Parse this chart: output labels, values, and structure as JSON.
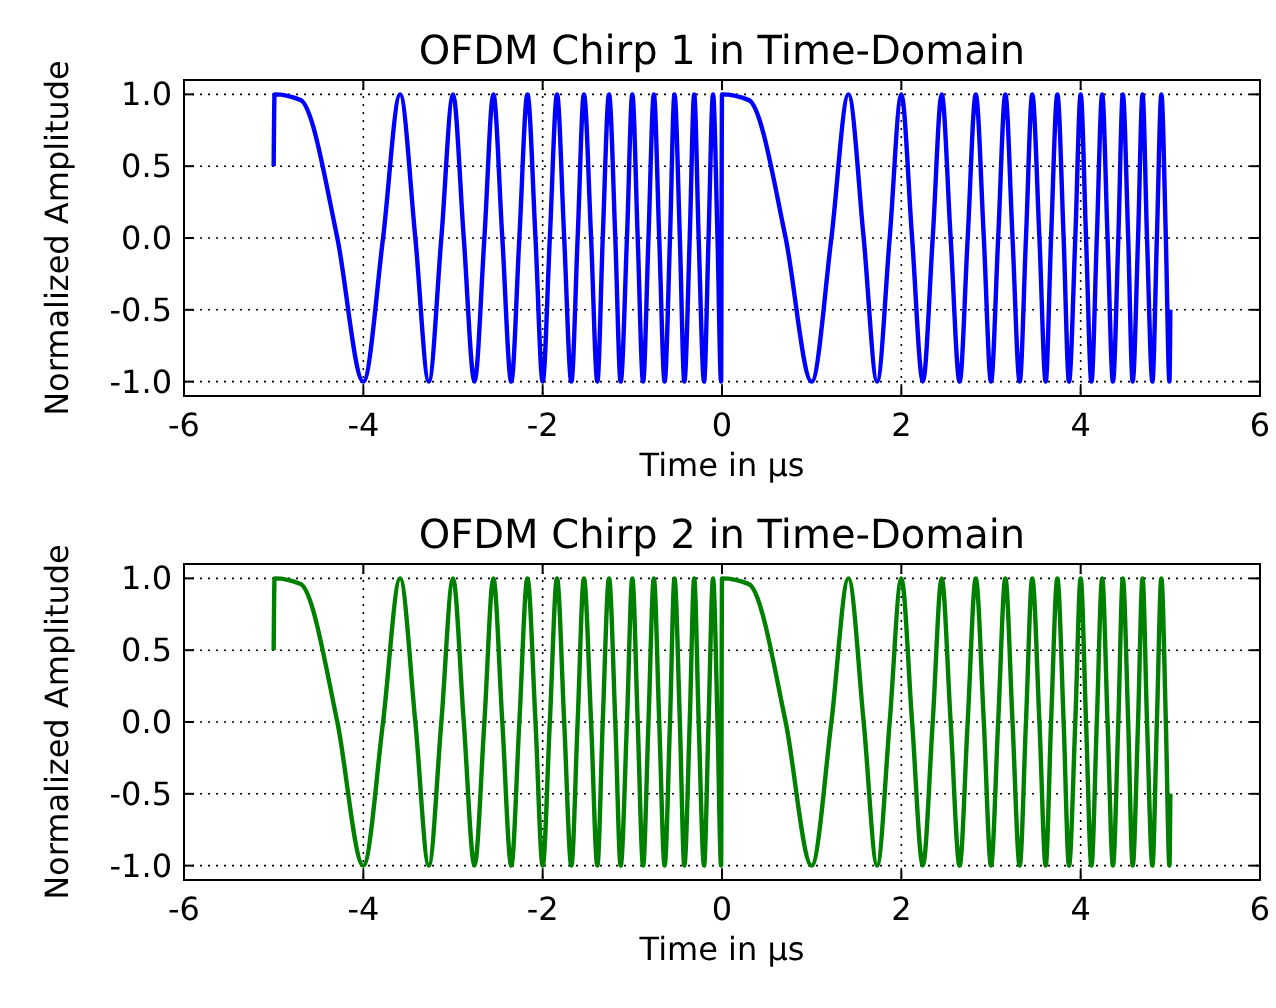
{
  "chart_data": [
    {
      "type": "line",
      "title": "OFDM Chirp 1 in Time-Domain",
      "xlabel": "Time in μs",
      "ylabel": "Normalized Amplitude",
      "xlim": [
        -6,
        6
      ],
      "xticks": [
        -6,
        -4,
        -2,
        0,
        2,
        4,
        6
      ],
      "ylim": [
        -1.1,
        1.1
      ],
      "yticks": [
        {
          "value": -1,
          "label": "-1.0"
        },
        {
          "value": -0.5,
          "label": "-0.5"
        },
        {
          "value": 0,
          "label": "0.0"
        },
        {
          "value": 0.5,
          "label": "0.5"
        },
        {
          "value": 1,
          "label": "1.0"
        }
      ],
      "grid": true,
      "marker": "none",
      "line_style": "solid",
      "series": [
        {
          "color": "#0000ff",
          "x": [
            -5,
            -4.99,
            -4.7,
            -4.29,
            -4,
            -3.78,
            -3.59,
            -3.42,
            -3.27,
            -3.13,
            -3,
            -2.88,
            -2.76,
            -2.65,
            -2.55,
            -2.45,
            -2.35,
            -2.26,
            -2.17,
            -2.08,
            -2,
            -1.92,
            -1.84,
            -1.76,
            -1.68,
            -1.61,
            -1.54,
            -1.46,
            -1.39,
            -1.33,
            -1.26,
            -1.19,
            -1.13,
            -1.06,
            -1,
            -0.94,
            -0.88,
            -0.82,
            -0.76,
            -0.7,
            -0.64,
            -0.58,
            -0.53,
            -0.47,
            -0.42,
            -0.36,
            -0.31,
            -0.26,
            -0.2,
            -0.15,
            -0.1,
            -0.05,
            -0.01,
            0,
            0.3,
            0.71,
            1,
            1.22,
            1.41,
            1.58,
            1.73,
            1.87,
            2,
            2.12,
            2.24,
            2.35,
            2.45,
            2.55,
            2.65,
            2.74,
            2.83,
            2.92,
            3,
            3.08,
            3.16,
            3.24,
            3.32,
            3.39,
            3.46,
            3.54,
            3.61,
            3.67,
            3.74,
            3.81,
            3.87,
            3.94,
            4,
            4.06,
            4.12,
            4.18,
            4.24,
            4.3,
            4.36,
            4.42,
            4.47,
            4.53,
            4.58,
            4.64,
            4.69,
            4.74,
            4.8,
            4.85,
            4.9,
            4.95,
            4.99,
            5
          ],
          "values": [
            0.5,
            1,
            0.96,
            0,
            -1,
            0,
            1,
            0,
            -1,
            0,
            1,
            0,
            -1,
            0,
            1,
            0,
            -1,
            0,
            1,
            0,
            -1,
            0,
            1,
            0,
            -1,
            0,
            1,
            0,
            -1,
            0,
            1,
            0,
            -1,
            0,
            1,
            0,
            -1,
            0,
            1,
            0,
            -1,
            0,
            1,
            0,
            -1,
            0,
            1,
            0,
            -1,
            0,
            1,
            0,
            -1,
            1,
            0.96,
            0,
            -1,
            0,
            1,
            0,
            -1,
            0,
            1,
            0,
            -1,
            0,
            1,
            0,
            -1,
            0,
            1,
            0,
            -1,
            0,
            1,
            0,
            -1,
            0,
            1,
            0,
            -1,
            0,
            1,
            0,
            -1,
            0,
            1,
            0,
            -1,
            0,
            1,
            0,
            -1,
            0,
            1,
            0,
            -1,
            0,
            1,
            0,
            -1,
            0,
            1,
            0,
            -1,
            -0.5
          ]
        }
      ]
    },
    {
      "type": "line",
      "title": "OFDM Chirp 2 in Time-Domain",
      "xlabel": "Time in μs",
      "ylabel": "Normalized Amplitude",
      "xlim": [
        -6,
        6
      ],
      "xticks": [
        -6,
        -4,
        -2,
        0,
        2,
        4,
        6
      ],
      "ylim": [
        -1.1,
        1.1
      ],
      "yticks": [
        {
          "value": -1,
          "label": "-1.0"
        },
        {
          "value": -0.5,
          "label": "-0.5"
        },
        {
          "value": 0,
          "label": "0.0"
        },
        {
          "value": 0.5,
          "label": "0.5"
        },
        {
          "value": 1,
          "label": "1.0"
        }
      ],
      "grid": true,
      "marker": "none",
      "line_style": "solid",
      "series": [
        {
          "color": "#008000",
          "x": [
            -5,
            -4.99,
            -4.7,
            -4.29,
            -4,
            -3.78,
            -3.59,
            -3.42,
            -3.27,
            -3.13,
            -3,
            -2.88,
            -2.76,
            -2.65,
            -2.55,
            -2.45,
            -2.35,
            -2.26,
            -2.17,
            -2.08,
            -2,
            -1.92,
            -1.84,
            -1.76,
            -1.68,
            -1.61,
            -1.54,
            -1.46,
            -1.39,
            -1.33,
            -1.26,
            -1.19,
            -1.13,
            -1.06,
            -1,
            -0.94,
            -0.88,
            -0.82,
            -0.76,
            -0.7,
            -0.64,
            -0.58,
            -0.53,
            -0.47,
            -0.42,
            -0.36,
            -0.31,
            -0.26,
            -0.2,
            -0.15,
            -0.1,
            -0.05,
            -0.01,
            0,
            0.3,
            0.71,
            1,
            1.22,
            1.41,
            1.58,
            1.73,
            1.87,
            2,
            2.12,
            2.24,
            2.35,
            2.45,
            2.55,
            2.65,
            2.74,
            2.83,
            2.92,
            3,
            3.08,
            3.16,
            3.24,
            3.32,
            3.39,
            3.46,
            3.54,
            3.61,
            3.67,
            3.74,
            3.81,
            3.87,
            3.94,
            4,
            4.06,
            4.12,
            4.18,
            4.24,
            4.3,
            4.36,
            4.42,
            4.47,
            4.53,
            4.58,
            4.64,
            4.69,
            4.74,
            4.8,
            4.85,
            4.9,
            4.95,
            4.99,
            5
          ],
          "values": [
            0.5,
            1,
            0.96,
            0,
            -1,
            0,
            1,
            0,
            -1,
            0,
            1,
            0,
            -1,
            0,
            1,
            0,
            -1,
            0,
            1,
            0,
            -1,
            0,
            1,
            0,
            -1,
            0,
            1,
            0,
            -1,
            0,
            1,
            0,
            -1,
            0,
            1,
            0,
            -1,
            0,
            1,
            0,
            -1,
            0,
            1,
            0,
            -1,
            0,
            1,
            0,
            -1,
            0,
            1,
            0,
            -1,
            1,
            0.96,
            0,
            -1,
            0,
            1,
            0,
            -1,
            0,
            1,
            0,
            -1,
            0,
            1,
            0,
            -1,
            0,
            1,
            0,
            -1,
            0,
            1,
            0,
            -1,
            0,
            1,
            0,
            -1,
            0,
            1,
            0,
            -1,
            0,
            1,
            0,
            -1,
            0,
            1,
            0,
            -1,
            0,
            1,
            0,
            -1,
            0,
            1,
            0,
            -1,
            0,
            1,
            0,
            -1,
            -0.5
          ]
        }
      ]
    }
  ]
}
